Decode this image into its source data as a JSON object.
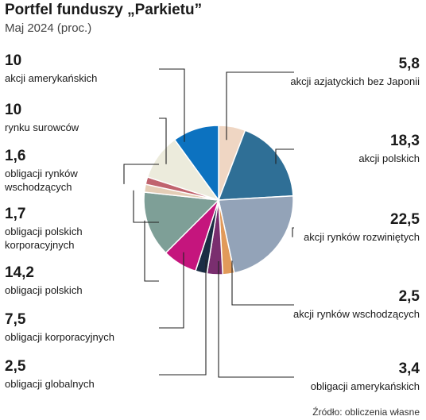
{
  "chart_data": {
    "type": "pie",
    "title": "Portfel funduszy „Parkietu”",
    "subtitle": "Maj 2024 (proc.)",
    "source": "Źródło: obliczenia własne",
    "slices": [
      {
        "value": 5.8,
        "value_label": "5,8",
        "label_lines": [
          "akcji azjatyckich bez Japonii"
        ],
        "color": "#efd6c3"
      },
      {
        "value": 18.3,
        "value_label": "18,3",
        "label_lines": [
          "akcji polskich"
        ],
        "color": "#2f6f96"
      },
      {
        "value": 22.5,
        "value_label": "22,5",
        "label_lines": [
          "akcji rynków rozwiniętych"
        ],
        "color": "#93a3b8"
      },
      {
        "value": 2.5,
        "value_label": "2,5",
        "label_lines": [
          "akcji rynków wschodzących"
        ],
        "color": "#e19a5a"
      },
      {
        "value": 3.4,
        "value_label": "3,4",
        "label_lines": [
          "obligacji amerykańskich"
        ],
        "color": "#7a2e6f"
      },
      {
        "value": 2.5,
        "value_label": "2,5",
        "label_lines": [
          "obligacji globalnych"
        ],
        "color": "#1b2d44"
      },
      {
        "value": 7.5,
        "value_label": "7,5",
        "label_lines": [
          "obligacji korporacyjnych"
        ],
        "color": "#c5157d"
      },
      {
        "value": 14.2,
        "value_label": "14,2",
        "label_lines": [
          "obligacji polskich"
        ],
        "color": "#7e9f97"
      },
      {
        "value": 1.7,
        "value_label": "1,7",
        "label_lines": [
          "obligacji polskich",
          "korporacyjnych"
        ],
        "color": "#e4cdb6"
      },
      {
        "value": 1.6,
        "value_label": "1,6",
        "label_lines": [
          "obligacji rynków",
          "wschodzących"
        ],
        "color": "#c0636e"
      },
      {
        "value": 10,
        "value_label": "10",
        "label_lines": [
          "rynku surowców"
        ],
        "color": "#ecebdc"
      },
      {
        "value": 10,
        "value_label": "10",
        "label_lines": [
          "akcji amerykańskich"
        ],
        "color": "#0c72c0"
      }
    ]
  }
}
